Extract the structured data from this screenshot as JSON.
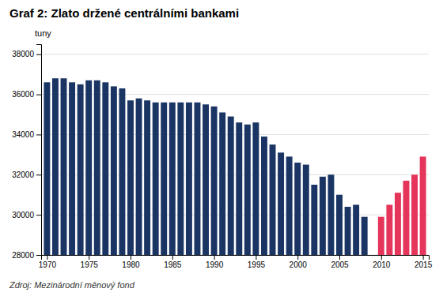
{
  "chart_data": {
    "type": "bar",
    "title": "Graf 2: Zlato držené centrálními bankami",
    "ylabel": "tuny",
    "annotations": [
      "Zdroj: Mezinárodní měnový fond"
    ],
    "x": [
      1970,
      1971,
      1972,
      1973,
      1974,
      1975,
      1976,
      1977,
      1978,
      1979,
      1980,
      1981,
      1982,
      1983,
      1984,
      1985,
      1986,
      1987,
      1988,
      1989,
      1990,
      1991,
      1992,
      1993,
      1994,
      1995,
      1996,
      1997,
      1998,
      1999,
      2000,
      2001,
      2002,
      2003,
      2004,
      2005,
      2006,
      2007,
      2008,
      2009,
      2010,
      2011,
      2012,
      2013,
      2014,
      2015
    ],
    "values": [
      36600,
      36800,
      36800,
      36600,
      36500,
      36700,
      36700,
      36600,
      36400,
      36300,
      35700,
      35800,
      35700,
      35600,
      35600,
      35600,
      35600,
      35600,
      35600,
      35500,
      35400,
      35100,
      34900,
      34600,
      34500,
      34600,
      33900,
      33500,
      33100,
      32900,
      32600,
      32500,
      31500,
      31900,
      32000,
      31000,
      30400,
      30500,
      29900,
      28000,
      29900,
      30500,
      31100,
      31700,
      32000,
      32900
    ],
    "colors": [
      "#1a3564",
      "#1a3564",
      "#1a3564",
      "#1a3564",
      "#1a3564",
      "#1a3564",
      "#1a3564",
      "#1a3564",
      "#1a3564",
      "#1a3564",
      "#1a3564",
      "#1a3564",
      "#1a3564",
      "#1a3564",
      "#1a3564",
      "#1a3564",
      "#1a3564",
      "#1a3564",
      "#1a3564",
      "#1a3564",
      "#1a3564",
      "#1a3564",
      "#1a3564",
      "#1a3564",
      "#1a3564",
      "#1a3564",
      "#1a3564",
      "#1a3564",
      "#1a3564",
      "#1a3564",
      "#1a3564",
      "#1a3564",
      "#1a3564",
      "#1a3564",
      "#1a3564",
      "#1a3564",
      "#1a3564",
      "#1a3564",
      "#1a3564",
      "#e5355a",
      "#e5355a",
      "#e5355a",
      "#e5355a",
      "#e5355a",
      "#e5355a",
      "#e5355a"
    ],
    "xlim": [
      1969.3,
      2015.7
    ],
    "xticks": [
      1970,
      1975,
      1980,
      1985,
      1990,
      1995,
      2000,
      2005,
      2010,
      2015
    ],
    "ylim": [
      28000,
      38500
    ],
    "yticks": [
      28000,
      30000,
      32000,
      34000,
      36000,
      38000
    ],
    "grid": true
  }
}
